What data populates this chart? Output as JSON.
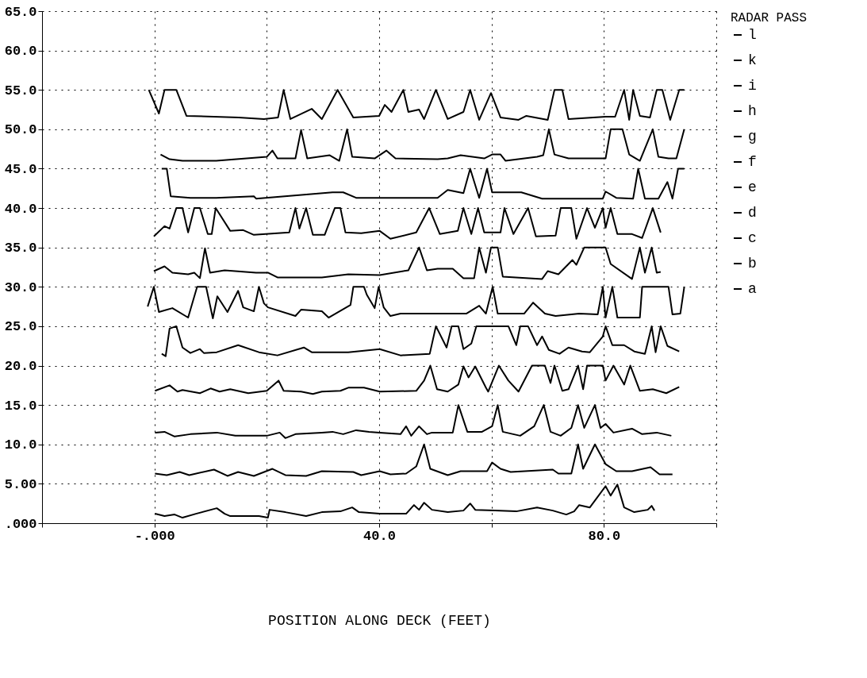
{
  "chart_data": {
    "type": "line",
    "xlabel": "POSITION ALONG DECK (FEET)",
    "legend_title": "RADAR PASS",
    "legend": "right",
    "grid": true,
    "marker": "none",
    "line_style": "solid",
    "xlim": [
      -20,
      100
    ],
    "xticks": [
      {
        "value": -20,
        "label": null
      },
      {
        "value": 0,
        "label": "-.000"
      },
      {
        "value": 20,
        "label": null
      },
      {
        "value": 40,
        "label": "40.0"
      },
      {
        "value": 60,
        "label": null
      },
      {
        "value": 80,
        "label": "80.0"
      },
      {
        "value": 100,
        "label": null
      }
    ],
    "ylim": [
      0,
      65
    ],
    "yticks": [
      {
        "value": 0,
        "label": ".000"
      },
      {
        "value": 5,
        "label": "5.00"
      },
      {
        "value": 10,
        "label": "10.0"
      },
      {
        "value": 15,
        "label": "15.0"
      },
      {
        "value": 20,
        "label": "20.0"
      },
      {
        "value": 25,
        "label": "25.0"
      },
      {
        "value": 30,
        "label": "30.0"
      },
      {
        "value": 35,
        "label": "35.0"
      },
      {
        "value": 40,
        "label": "40.0"
      },
      {
        "value": 45,
        "label": "45.0"
      },
      {
        "value": 50,
        "label": "50.0"
      },
      {
        "value": 55,
        "label": "55.0"
      },
      {
        "value": 60,
        "label": "60.0"
      },
      {
        "value": 65,
        "label": "65.0"
      }
    ],
    "series": [
      {
        "name": "l",
        "color": "#000000",
        "x": [
          -1,
          0.8,
          1.8,
          3.9,
          5.7,
          15,
          19.5,
          22,
          23,
          24.2,
          28,
          29.8,
          32.6,
          35.4,
          40,
          41,
          42.2,
          44.3,
          45.2,
          47.1,
          48,
          50.1,
          52.2,
          55,
          56.2,
          57.8,
          59.9,
          61.6,
          64.8,
          66.2,
          70,
          71.2,
          72.6,
          73.7,
          80.3,
          82,
          83.6,
          84.5,
          85.2,
          86.4,
          88.2,
          89.4,
          90.4,
          91.8,
          93.4,
          94.3
        ],
        "values": [
          55,
          52,
          55,
          55,
          51.7,
          51.5,
          51.3,
          51.5,
          55,
          51.3,
          52.6,
          51.3,
          55,
          51.5,
          51.7,
          53.1,
          52.2,
          55,
          52.2,
          52.5,
          51.3,
          55,
          51.3,
          52.2,
          55,
          51.2,
          54.6,
          51.5,
          51.2,
          51.7,
          51.2,
          55,
          55,
          51.3,
          51.6,
          51.6,
          55,
          51.2,
          55,
          51.7,
          51.5,
          55,
          55,
          51.2,
          55,
          55
        ]
      },
      {
        "name": "k",
        "color": "#000000",
        "x": [
          1.1,
          2.7,
          5,
          11,
          20,
          21,
          21.9,
          25.1,
          26.1,
          27.2,
          31.2,
          32.9,
          34.3,
          35.2,
          39.2,
          41.3,
          42.9,
          50.4,
          52.2,
          54.5,
          58.7,
          60.1,
          61.6,
          62.5,
          68.1,
          69.2,
          70.2,
          71.2,
          73.7,
          76.1,
          80.3,
          81.2,
          83.3,
          84.5,
          86.4,
          88.7,
          89.7,
          91.5,
          92.9,
          94.3
        ],
        "values": [
          46.8,
          46.2,
          46,
          46,
          46.5,
          47.3,
          46.3,
          46.3,
          49.9,
          46.3,
          46.7,
          46,
          50,
          46.5,
          46.3,
          47.3,
          46.3,
          46.2,
          46.3,
          46.7,
          46.3,
          46.8,
          46.8,
          46,
          46.5,
          46.7,
          50,
          46.8,
          46.3,
          46.3,
          46.3,
          50,
          50,
          46.8,
          46,
          50,
          46.5,
          46.3,
          46.3,
          50
        ]
      },
      {
        "name": "i",
        "color": "#000000",
        "x": [
          1.3,
          2.2,
          2.9,
          6.4,
          11,
          17.7,
          18.1,
          31.7,
          33.6,
          35.9,
          43.8,
          50.4,
          52.2,
          55,
          56.2,
          57.8,
          59.2,
          60.1,
          65.3,
          69,
          79.8,
          80.3,
          82.2,
          85.2,
          86.1,
          87.3,
          89.7,
          91.3,
          92.2,
          93.2,
          94.3
        ],
        "values": [
          45,
          45,
          41.5,
          41.3,
          41.3,
          41.5,
          41.2,
          42,
          42,
          41.3,
          41.3,
          41.3,
          42.3,
          41.9,
          45,
          41.3,
          45,
          42,
          42,
          41.2,
          41.2,
          42.1,
          41.3,
          41.2,
          45,
          41.2,
          41.2,
          43.3,
          41.2,
          45,
          45
        ]
      },
      {
        "name": "h",
        "color": "#000000",
        "x": [
          -0.1,
          1.8,
          2.7,
          3.9,
          5,
          6,
          7.1,
          8.1,
          9.5,
          10.2,
          10.9,
          13.5,
          15.8,
          17.7,
          24,
          25.1,
          25.8,
          27,
          28.2,
          30.3,
          32.1,
          33.1,
          34,
          36.8,
          40.1,
          42,
          46.6,
          48.9,
          50.8,
          54,
          55,
          56.4,
          57.6,
          58.7,
          61.6,
          62.3,
          63.9,
          66.5,
          67.9,
          71.4,
          72.3,
          74.2,
          75.1,
          77,
          78.4,
          79.8,
          80.3,
          81.2,
          82.4,
          85,
          86.8,
          88.7,
          90.1
        ],
        "values": [
          36.4,
          37.7,
          37.4,
          40,
          40,
          36.9,
          40,
          40,
          36.7,
          36.7,
          40,
          37.1,
          37.2,
          36.6,
          36.9,
          40,
          37.4,
          40,
          36.6,
          36.6,
          40,
          40,
          36.9,
          36.8,
          37.1,
          36.1,
          36.9,
          40,
          36.7,
          37.1,
          40,
          36.7,
          40,
          36.9,
          36.9,
          40,
          36.7,
          40,
          36.4,
          36.5,
          40,
          40,
          36.1,
          40,
          37.5,
          40,
          37.5,
          40,
          36.7,
          36.7,
          36.2,
          40,
          36.9
        ]
      },
      {
        "name": "g",
        "color": "#000000",
        "x": [
          -0.1,
          1.8,
          3.2,
          6,
          7.1,
          8.1,
          9,
          9.9,
          12.5,
          18.1,
          20.2,
          21.9,
          29.8,
          34.5,
          40.1,
          45.2,
          47.1,
          48.5,
          50.4,
          53.1,
          55,
          56.9,
          57.8,
          59,
          59.9,
          61.1,
          62,
          69,
          70,
          71.9,
          74.4,
          75.1,
          76.5,
          80.3,
          81.2,
          85,
          86.4,
          87.3,
          88.5,
          89.4,
          90.1
        ],
        "values": [
          32,
          32.6,
          31.8,
          31.6,
          31.8,
          31.1,
          34.9,
          31.8,
          32.1,
          31.8,
          31.8,
          31.2,
          31.2,
          31.6,
          31.5,
          32.1,
          35,
          32.1,
          32.3,
          32.3,
          31.1,
          31.1,
          35,
          31.8,
          35,
          35,
          31.3,
          31,
          32,
          31.6,
          33.4,
          32.8,
          35,
          35,
          32.9,
          31,
          35,
          31.8,
          35,
          31.8,
          31.9
        ]
      },
      {
        "name": "f",
        "color": "#000000",
        "x": [
          -1.2,
          -0.1,
          0.8,
          3.2,
          6,
          7.6,
          9.2,
          10.4,
          11.2,
          13,
          14.9,
          15.8,
          17.7,
          18.6,
          19.5,
          20.2,
          25.1,
          26.1,
          29.8,
          31,
          34.9,
          35.4,
          37.3,
          37.8,
          39.2,
          39.9,
          40.8,
          42,
          43.8,
          50.4,
          55.5,
          57.8,
          59,
          60.2,
          61.1,
          65.8,
          67.4,
          69.5,
          71.4,
          75.6,
          78.9,
          79.8,
          80.3,
          81.5,
          82.4,
          86.4,
          86.8,
          91.5,
          92.2,
          93.6,
          94.3
        ],
        "values": [
          27.5,
          30,
          26.8,
          27.3,
          26.1,
          30,
          30,
          26,
          28.8,
          26.8,
          29.5,
          27.4,
          26.9,
          30,
          27.9,
          27.4,
          26.3,
          27.1,
          26.9,
          26.1,
          27.7,
          30,
          30,
          29,
          27.3,
          30,
          27.4,
          26.3,
          26.6,
          26.6,
          26.6,
          27.6,
          26.6,
          30,
          26.6,
          26.6,
          28,
          26.6,
          26.3,
          26.6,
          26.5,
          30,
          26.1,
          30,
          26.1,
          26.1,
          30,
          30,
          26.5,
          26.6,
          30
        ]
      },
      {
        "name": "e",
        "color": "#000000",
        "x": [
          1.3,
          2,
          2.7,
          3.9,
          5,
          6.4,
          8.1,
          8.8,
          11.1,
          14.9,
          18.6,
          21.9,
          26.6,
          28,
          34.5,
          40.1,
          43.8,
          49,
          50.1,
          52,
          52.9,
          54.1,
          55,
          56.4,
          57.3,
          63,
          64.4,
          65.1,
          66.5,
          68.1,
          69,
          70.2,
          72.1,
          73.7,
          76.1,
          77.5,
          79.8,
          80.3,
          81.5,
          83.6,
          85.4,
          87.3,
          88.5,
          89.2,
          90.1,
          91.3,
          93.4
        ],
        "values": [
          21.5,
          21.2,
          24.7,
          25,
          22.3,
          21.6,
          22.1,
          21.6,
          21.7,
          22.6,
          21.7,
          21.3,
          22.3,
          21.7,
          21.7,
          22.1,
          21.3,
          21.5,
          25,
          22.3,
          25,
          25,
          22.1,
          22.8,
          25,
          25,
          22.6,
          25,
          25,
          22.6,
          23.7,
          22,
          21.5,
          22.3,
          21.8,
          21.7,
          23.7,
          25,
          22.6,
          22.6,
          21.8,
          21.5,
          25,
          21.7,
          25,
          22.5,
          21.8
        ]
      },
      {
        "name": "d",
        "color": "#000000",
        "x": [
          0.1,
          2.7,
          4.1,
          5,
          8.1,
          10,
          11.6,
          13.5,
          16.7,
          20,
          22.1,
          23,
          26.1,
          28.2,
          29.8,
          33.1,
          34.5,
          37.3,
          40.1,
          46.6,
          48,
          49.1,
          50.3,
          52.2,
          54.1,
          55,
          55.9,
          57.1,
          59,
          59.4,
          61.3,
          63,
          64.8,
          67.2,
          69.5,
          70.5,
          71.2,
          72.6,
          73.7,
          75.4,
          76.3,
          77,
          79.8,
          80.3,
          81.7,
          83.6,
          84.7,
          86.4,
          88.7,
          91.1,
          93.4
        ],
        "values": [
          16.8,
          17.5,
          16.7,
          16.9,
          16.5,
          17.1,
          16.7,
          17,
          16.5,
          16.8,
          18.1,
          16.8,
          16.7,
          16.4,
          16.7,
          16.8,
          17.2,
          17.2,
          16.7,
          16.8,
          18.1,
          20,
          17,
          16.7,
          17.6,
          19.9,
          18.5,
          19.9,
          17.2,
          16.7,
          20,
          18.1,
          16.7,
          20,
          20,
          17.8,
          20,
          16.8,
          17,
          20,
          17,
          20,
          20,
          18.1,
          20,
          17.6,
          20,
          16.8,
          17,
          16.5,
          17.3
        ]
      },
      {
        "name": "c",
        "color": "#000000",
        "x": [
          0.1,
          1.8,
          3.6,
          6.4,
          11.1,
          14.4,
          20,
          22.3,
          23.3,
          25.1,
          29.8,
          31.7,
          33.6,
          35.9,
          38.2,
          40.1,
          43.8,
          44.8,
          45.7,
          47.1,
          48.5,
          49.4,
          53.1,
          54.1,
          55.7,
          58.3,
          60.1,
          61.1,
          62,
          65.1,
          67.6,
          69.3,
          70.5,
          72.3,
          74.2,
          75.4,
          76.5,
          78.4,
          79.4,
          80.3,
          81.7,
          85,
          86.8,
          89.4,
          92
        ],
        "values": [
          11.5,
          11.6,
          11,
          11.3,
          11.5,
          11.1,
          11.1,
          11.5,
          10.8,
          11.3,
          11.5,
          11.6,
          11.3,
          11.8,
          11.6,
          11.5,
          11.3,
          12.3,
          11.1,
          12.3,
          11.3,
          11.5,
          11.5,
          15,
          11.6,
          11.6,
          12.3,
          15,
          11.6,
          11.1,
          12.3,
          15,
          11.6,
          11.1,
          12.1,
          15,
          12.1,
          15,
          12.1,
          12.6,
          11.5,
          12,
          11.3,
          11.5,
          11.1
        ]
      },
      {
        "name": "b",
        "color": "#000000",
        "x": [
          0.1,
          2.2,
          4.5,
          6.2,
          10.6,
          13,
          14.9,
          17.7,
          21,
          23.3,
          27,
          29.8,
          35.4,
          36.8,
          40.1,
          42,
          44.8,
          46.6,
          48,
          49.1,
          52.2,
          54.5,
          59.2,
          60.1,
          61.6,
          63.4,
          70.9,
          71.9,
          74.2,
          75.4,
          76.3,
          78.4,
          80.3,
          82.2,
          85,
          88.3,
          89.9,
          92.2
        ],
        "values": [
          6.3,
          6.1,
          6.5,
          6.1,
          6.8,
          6,
          6.5,
          6,
          6.9,
          6.1,
          6,
          6.6,
          6.5,
          6.1,
          6.6,
          6.2,
          6.3,
          7.2,
          10,
          6.9,
          6.1,
          6.6,
          6.6,
          7.7,
          6.9,
          6.5,
          6.8,
          6.3,
          6.3,
          10,
          6.9,
          10,
          7.5,
          6.6,
          6.6,
          7.1,
          6.2,
          6.2
        ]
      },
      {
        "name": "a",
        "color": "#000000",
        "x": [
          0.1,
          1.8,
          3.6,
          5,
          7.4,
          11.1,
          12.5,
          13.5,
          18.6,
          20.2,
          20.5,
          23.3,
          27,
          29.8,
          33.1,
          35.2,
          36.4,
          40.1,
          44.8,
          46.2,
          47.1,
          48,
          49.4,
          52.2,
          55,
          56.2,
          57.1,
          60.6,
          64.4,
          68.1,
          70.9,
          73.3,
          74.7,
          75.6,
          77.5,
          80.3,
          81.2,
          82.4,
          83.6,
          85.4,
          87.8,
          88.5,
          89
        ],
        "values": [
          1.2,
          0.9,
          1.1,
          0.7,
          1.2,
          1.9,
          1.2,
          0.9,
          0.9,
          0.7,
          1.7,
          1.4,
          0.9,
          1.4,
          1.5,
          2,
          1.4,
          1.2,
          1.2,
          2.3,
          1.7,
          2.6,
          1.7,
          1.4,
          1.6,
          2.5,
          1.7,
          1.6,
          1.5,
          2,
          1.6,
          1.1,
          1.5,
          2.3,
          2,
          4.7,
          3.5,
          4.9,
          2,
          1.4,
          1.7,
          2.2,
          1.6
        ]
      }
    ]
  }
}
